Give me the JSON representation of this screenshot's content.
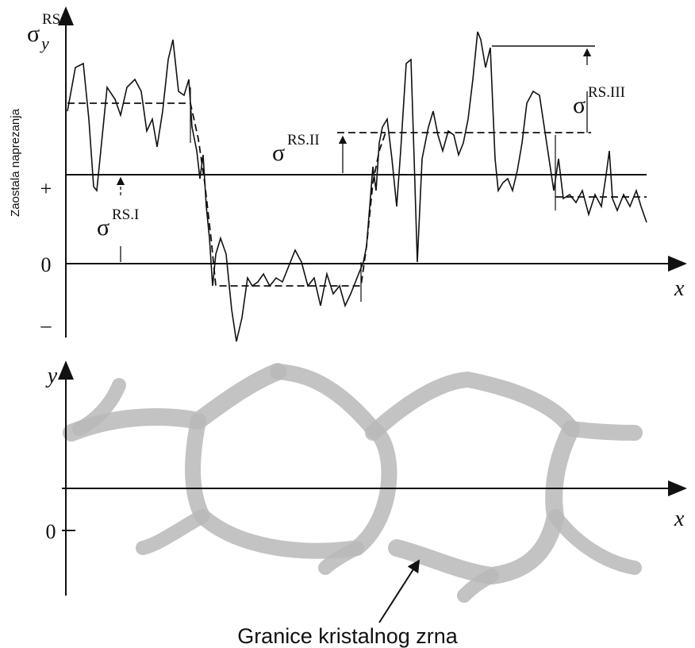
{
  "top_plot": {
    "y_axis_symbol": "σ",
    "y_axis_sub": "y",
    "y_axis_sup": "RS",
    "side_label": "Zaostala naprezanja",
    "tick_plus": "+",
    "tick_zero": "0",
    "tick_minus": "–",
    "x_axis_label": "x",
    "annotations": [
      {
        "symbol": "σ",
        "sup": "RS.I"
      },
      {
        "symbol": "σ",
        "sup": "RS.II"
      },
      {
        "symbol": "σ",
        "sup": "RS.III"
      }
    ]
  },
  "bottom_plot": {
    "y_axis_label": "y",
    "tick_zero": "0",
    "x_axis_label": "x"
  },
  "caption": "Granice kristalnog zrna"
}
